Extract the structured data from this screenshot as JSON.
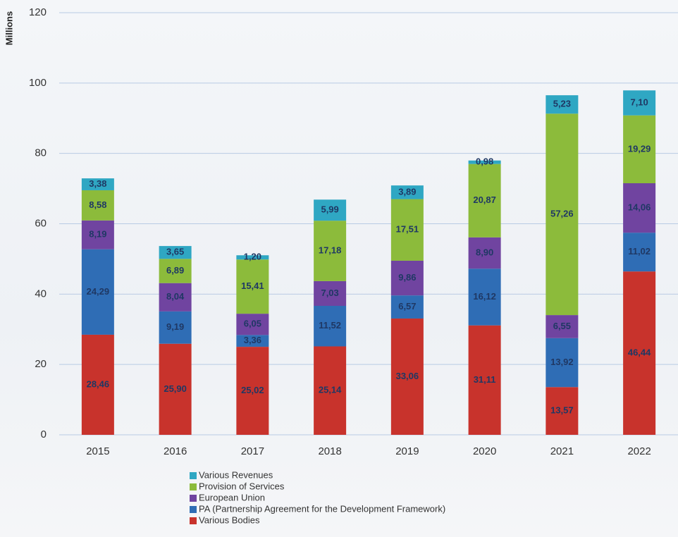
{
  "chart_data": {
    "type": "bar",
    "stacked": true,
    "y_label": "Millions",
    "categories": [
      "2015",
      "2016",
      "2017",
      "2018",
      "2019",
      "2020",
      "2021",
      "2022"
    ],
    "ylim": [
      0,
      120
    ],
    "yticks": [
      0,
      20,
      40,
      60,
      80,
      100,
      120
    ],
    "grid": true,
    "series": [
      {
        "name": "Various Bodies",
        "color": "#c8332c",
        "values": [
          28.46,
          25.9,
          25.02,
          25.14,
          33.06,
          31.11,
          13.57,
          46.44
        ],
        "value_labels": [
          "28,46",
          "25,90",
          "25,02",
          "25,14",
          "33,06",
          "31,11",
          "13,57",
          "46,44"
        ]
      },
      {
        "name": "PA (Partnership Agreement for the Development Framework)",
        "color": "#2f6db5",
        "values": [
          24.29,
          9.19,
          3.36,
          11.52,
          6.57,
          16.12,
          13.92,
          11.02
        ],
        "value_labels": [
          "24,29",
          "9,19",
          "3,36",
          "11,52",
          "6,57",
          "16,12",
          "13,92",
          "11,02"
        ]
      },
      {
        "name": "European Union",
        "color": "#7044a0",
        "values": [
          8.19,
          8.04,
          6.05,
          7.03,
          9.86,
          8.9,
          6.55,
          14.06
        ],
        "value_labels": [
          "8,19",
          "8,04",
          "6,05",
          "7,03",
          "9,86",
          "8,90",
          "6,55",
          "14,06"
        ]
      },
      {
        "name": "Provision of Services",
        "color": "#8cbb3b",
        "values": [
          8.58,
          6.89,
          15.41,
          17.18,
          17.51,
          20.87,
          57.26,
          19.29
        ],
        "value_labels": [
          "8,58",
          "6,89",
          "15,41",
          "17,18",
          "17,51",
          "20,87",
          "57,26",
          "19,29"
        ]
      },
      {
        "name": "Various Revenues",
        "color": "#2fa7c3",
        "values": [
          3.38,
          3.65,
          1.2,
          5.99,
          3.89,
          0.98,
          5.23,
          7.1
        ],
        "value_labels": [
          "3,38",
          "3,65",
          "1,20",
          "5,99",
          "3,89",
          "0,98",
          "5,23",
          "7,10"
        ]
      }
    ]
  }
}
